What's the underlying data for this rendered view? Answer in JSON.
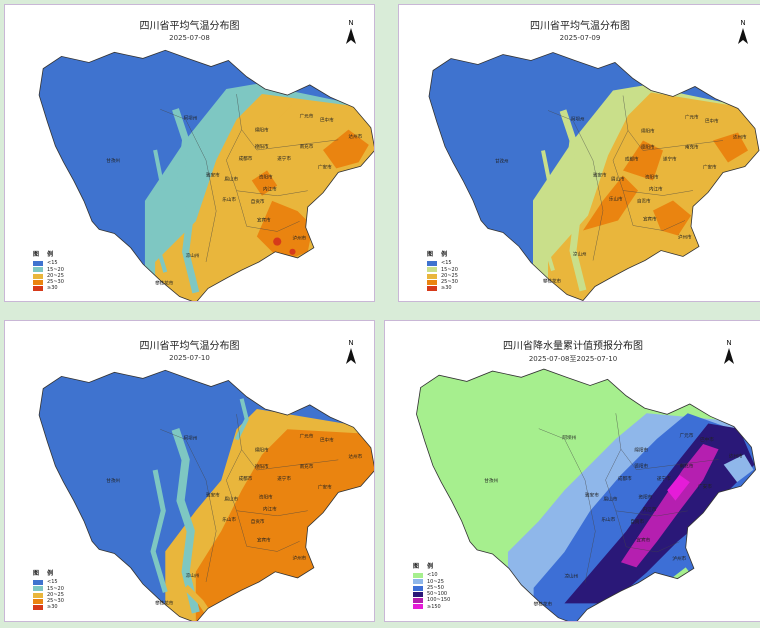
{
  "panels": [
    {
      "title": "四川省平均气温分布图",
      "date": "2025-07-08",
      "legend_title": "图 例",
      "legend": [
        {
          "label": "<15",
          "color": "#3f73cf"
        },
        {
          "label": "15~20",
          "color": "#7ec7c2"
        },
        {
          "label": "20~25",
          "color": "#e9b63c"
        },
        {
          "label": "25~30",
          "color": "#ea8410"
        },
        {
          "label": "≥30",
          "color": "#d63a1a"
        }
      ]
    },
    {
      "title": "四川省平均气温分布图",
      "date": "2025-07-09",
      "legend_title": "图 例",
      "legend": [
        {
          "label": "<15",
          "color": "#3f73cf"
        },
        {
          "label": "15~20",
          "color": "#c9df8a"
        },
        {
          "label": "20~25",
          "color": "#e9b63c"
        },
        {
          "label": "25~30",
          "color": "#ea8410"
        },
        {
          "label": "≥30",
          "color": "#d63a1a"
        }
      ]
    },
    {
      "title": "四川省平均气温分布图",
      "date": "2025-07-10",
      "legend_title": "图 例",
      "legend": [
        {
          "label": "<15",
          "color": "#3f73cf"
        },
        {
          "label": "15~20",
          "color": "#7ec7c2"
        },
        {
          "label": "20~25",
          "color": "#e9b63c"
        },
        {
          "label": "25~30",
          "color": "#ea8410"
        },
        {
          "label": "≥30",
          "color": "#d63a1a"
        }
      ]
    },
    {
      "title": "四川省降水量累计值预报分布图",
      "date": "2025-07-08至2025-07-10",
      "legend_title": "图 例",
      "legend": [
        {
          "label": "<10",
          "color": "#a6ef8e"
        },
        {
          "label": "10~25",
          "color": "#8fb7ea"
        },
        {
          "label": "25~50",
          "color": "#3d6fd6"
        },
        {
          "label": "50~100",
          "color": "#2a1878"
        },
        {
          "label": "100~150",
          "color": "#b51fb0"
        },
        {
          "label": "≥150",
          "color": "#e51cd8"
        }
      ]
    }
  ],
  "north_label": "N",
  "cities": [
    "阿坝州",
    "甘孜州",
    "广元市",
    "绵阳市",
    "巴中市",
    "达州市",
    "德阳市",
    "南充市",
    "成都市",
    "遂宁市",
    "广安市",
    "眉山市",
    "资阳市",
    "内江市",
    "乐山市",
    "自贡市",
    "宜宾市",
    "泸州市",
    "凉山州",
    "攀枝花市",
    "雅安市"
  ]
}
